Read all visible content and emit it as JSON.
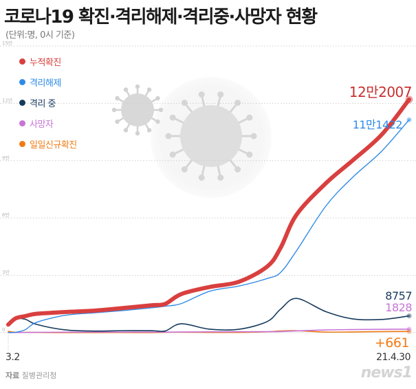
{
  "title": "코로나19 확진·격리해제·격리중·사망자 현황",
  "subtitle": "(단위:명, 0시 기준)",
  "source": {
    "label": "자료",
    "value": "질병관리청"
  },
  "logo": "news1",
  "chart_data": {
    "type": "line",
    "title": "코로나19 확진·격리해제·격리중·사망자 현황",
    "unit": "명",
    "x_start_label": "3.2",
    "x_end_label": "21.4.30",
    "x": [
      "2020-03-02",
      "2020-03-10",
      "2020-03-20",
      "2020-04-01",
      "2020-05-01",
      "2020-06-01",
      "2020-07-01",
      "2020-08-01",
      "2020-08-15",
      "2020-09-01",
      "2020-10-01",
      "2020-11-01",
      "2020-12-01",
      "2020-12-15",
      "2021-01-01",
      "2021-02-01",
      "2021-03-01",
      "2021-04-01",
      "2021-04-30"
    ],
    "ylim": [
      0,
      150000
    ],
    "yticks": [
      {
        "value": 0,
        "label": "0"
      },
      {
        "value": 30000,
        "label": "3만"
      },
      {
        "value": 60000,
        "label": "6만"
      },
      {
        "value": 90000,
        "label": "9만"
      },
      {
        "value": 120000,
        "label": "12만"
      },
      {
        "value": 150000,
        "label": "15만"
      }
    ],
    "grid": true,
    "legend_position": "top-left",
    "series": [
      {
        "name": "누적확진",
        "color": "#d8403f",
        "end_label": "12만2007",
        "values": [
          4212,
          7513,
          8652,
          9887,
          10774,
          11503,
          12850,
          14336,
          15039,
          20182,
          23889,
          26635,
          34652,
          44364,
          61769,
          78205,
          90029,
          103639,
          122007
        ]
      },
      {
        "name": "격리해제",
        "color": "#2f8be6",
        "end_label": "11만1422",
        "values": [
          30,
          247,
          1540,
          5408,
          9072,
          10385,
          11537,
          13007,
          13863,
          15198,
          21666,
          24395,
          28352,
          31493,
          42953,
          66325,
          81175,
          94978,
          111422
        ]
      },
      {
        "name": "격리 중",
        "color": "#163a5c",
        "end_label": "8757",
        "values": [
          4160,
          7212,
          7013,
          4314,
          1454,
          847,
          1031,
          1023,
          871,
          4652,
          1808,
          1777,
          5832,
          12293,
          17903,
          10976,
          7228,
          6891,
          8757
        ]
      },
      {
        "name": "사망자",
        "color": "#c774d6",
        "end_label": "1828",
        "values": [
          22,
          54,
          94,
          165,
          248,
          271,
          282,
          301,
          305,
          324,
          415,
          463,
          526,
          578,
          917,
          1420,
          1605,
          1737,
          1828
        ]
      },
      {
        "name": "일일신규확진",
        "color": "#f07c16",
        "end_label": "+661",
        "values": [
          686,
          131,
          147,
          101,
          9,
          35,
          51,
          31,
          166,
          235,
          113,
          124,
          451,
          880,
          1027,
          305,
          355,
          551,
          661
        ]
      }
    ]
  }
}
